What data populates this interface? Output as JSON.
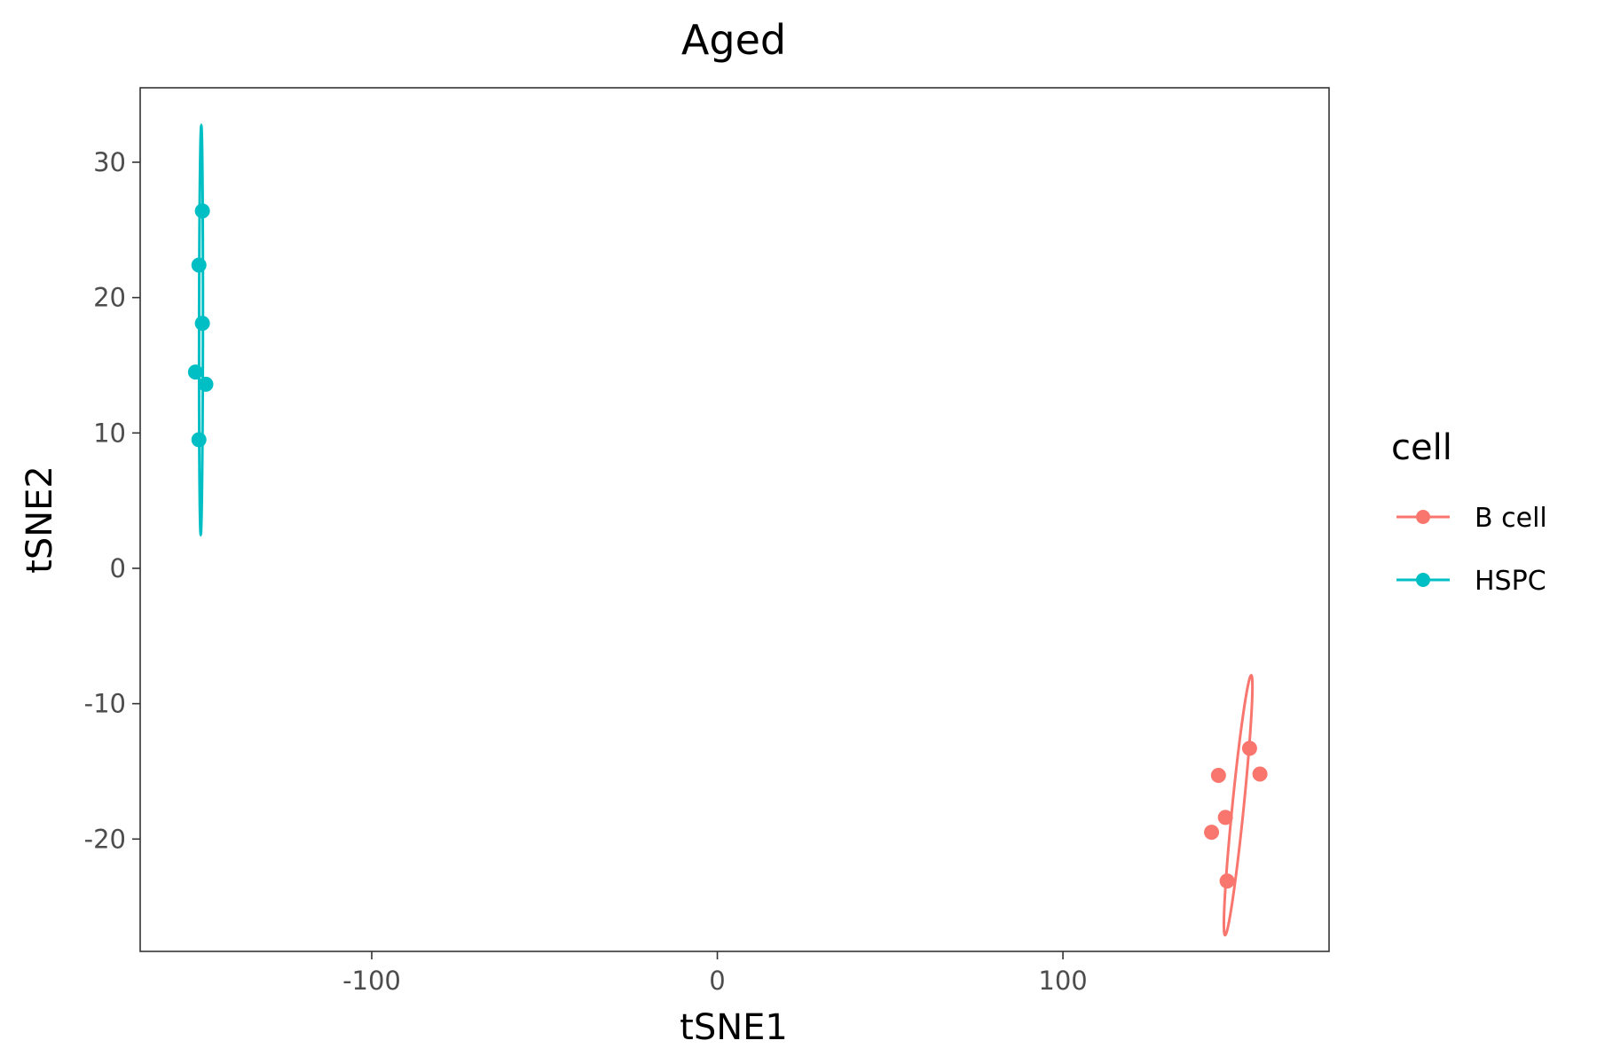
{
  "chart_data": {
    "type": "scatter",
    "title": "Aged",
    "xlabel": "tSNE1",
    "ylabel": "tSNE2",
    "xlim": [
      -167,
      177
    ],
    "ylim": [
      -28.3,
      35.5
    ],
    "xticks": [
      -100,
      0,
      100
    ],
    "xtick_labels": [
      "-100",
      "0",
      "100"
    ],
    "yticks": [
      -20,
      -10,
      0,
      10,
      20,
      30
    ],
    "ytick_labels": [
      "-20",
      "-10",
      "0",
      "10",
      "20",
      "30"
    ],
    "grid": false,
    "legend": {
      "title": "cell",
      "placement": "right",
      "entries": [
        "B cell",
        "HSPC"
      ]
    },
    "colors": {
      "B cell": "#F8766D",
      "HSPC": "#00BFC4"
    },
    "series": [
      {
        "name": "B cell",
        "points": [
          {
            "x": 154,
            "y": -13.3
          },
          {
            "x": 145,
            "y": -15.3
          },
          {
            "x": 157,
            "y": -15.2
          },
          {
            "x": 147,
            "y": -18.4
          },
          {
            "x": 143,
            "y": -19.5
          },
          {
            "x": 147.5,
            "y": -23.1
          }
        ],
        "ellipse": {
          "cx": 150.7,
          "cy": -17.5,
          "semi_major": 10.33,
          "semi_minor": 1.55,
          "angle_deg": 68
        }
      },
      {
        "name": "HSPC",
        "points": [
          {
            "x": -149,
            "y": 26.4
          },
          {
            "x": -150,
            "y": 22.4
          },
          {
            "x": -149,
            "y": 18.1
          },
          {
            "x": -151,
            "y": 14.5
          },
          {
            "x": -148,
            "y": 13.6
          },
          {
            "x": -150,
            "y": 9.5
          }
        ],
        "ellipse": {
          "cx": -149.4,
          "cy": 17.6,
          "semi_major": 15.1,
          "semi_minor": 0.55,
          "angle_deg": 89.7
        }
      }
    ]
  }
}
